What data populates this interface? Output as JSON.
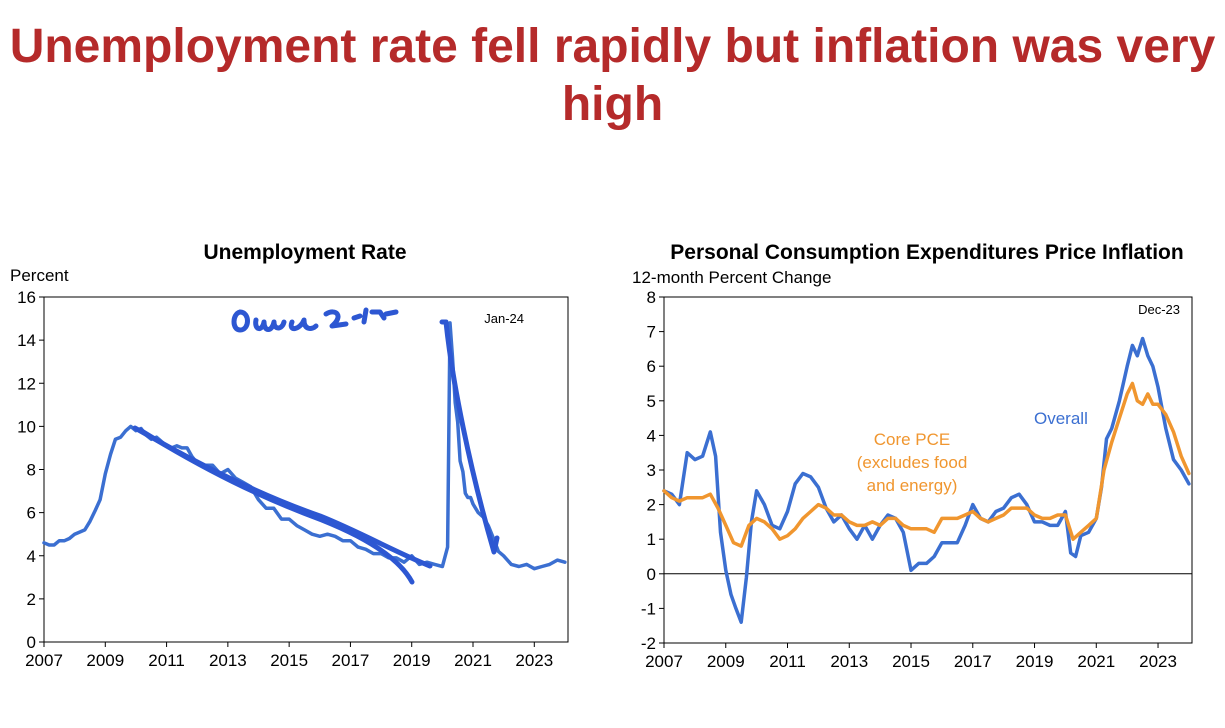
{
  "slide": {
    "title": "Unemployment rate fell rapidly but inflation was very high"
  },
  "colors": {
    "title": "#b52a2a",
    "overall": "#3b6fd1",
    "core": "#f0962f",
    "ink": "#2d57d2"
  },
  "chart_data": [
    {
      "type": "line",
      "title": "Unemployment Rate",
      "ylabel": "Percent",
      "xlabel": "",
      "date_label": "Jan-24",
      "xlim": [
        2007,
        2024.1
      ],
      "ylim": [
        0,
        16
      ],
      "x_ticks": [
        2007,
        2009,
        2011,
        2013,
        2015,
        2017,
        2019,
        2021,
        2023
      ],
      "y_ticks": [
        0,
        2,
        4,
        6,
        8,
        10,
        12,
        14,
        16
      ],
      "grid": false,
      "series": [
        {
          "name": "",
          "color": "#3b6fd1",
          "x": [
            2007.0,
            2007.17,
            2007.33,
            2007.5,
            2007.67,
            2007.83,
            2008.0,
            2008.17,
            2008.33,
            2008.5,
            2008.67,
            2008.83,
            2009.0,
            2009.17,
            2009.33,
            2009.5,
            2009.67,
            2009.83,
            2010.0,
            2010.17,
            2010.33,
            2010.5,
            2010.67,
            2010.83,
            2011.0,
            2011.17,
            2011.33,
            2011.5,
            2011.67,
            2011.83,
            2012.0,
            2012.25,
            2012.5,
            2012.75,
            2013.0,
            2013.25,
            2013.5,
            2013.75,
            2014.0,
            2014.25,
            2014.5,
            2014.75,
            2015.0,
            2015.25,
            2015.5,
            2015.75,
            2016.0,
            2016.25,
            2016.5,
            2016.75,
            2017.0,
            2017.25,
            2017.5,
            2017.75,
            2018.0,
            2018.25,
            2018.5,
            2018.75,
            2019.0,
            2019.25,
            2019.5,
            2019.75,
            2020.0,
            2020.17,
            2020.25,
            2020.33,
            2020.42,
            2020.5,
            2020.58,
            2020.67,
            2020.75,
            2020.83,
            2020.92,
            2021.0,
            2021.17,
            2021.33,
            2021.5,
            2021.67,
            2021.83,
            2022.0,
            2022.25,
            2022.5,
            2022.75,
            2023.0,
            2023.25,
            2023.5,
            2023.75,
            2024.0
          ],
          "y": [
            4.6,
            4.5,
            4.5,
            4.7,
            4.7,
            4.8,
            5.0,
            5.1,
            5.2,
            5.6,
            6.1,
            6.6,
            7.8,
            8.7,
            9.4,
            9.5,
            9.8,
            10.0,
            9.8,
            9.9,
            9.6,
            9.4,
            9.5,
            9.3,
            9.1,
            9.0,
            9.1,
            9.0,
            9.0,
            8.6,
            8.3,
            8.2,
            8.2,
            7.8,
            8.0,
            7.6,
            7.4,
            7.2,
            6.6,
            6.2,
            6.2,
            5.7,
            5.7,
            5.4,
            5.2,
            5.0,
            4.9,
            5.0,
            4.9,
            4.7,
            4.7,
            4.4,
            4.3,
            4.1,
            4.1,
            3.9,
            3.9,
            3.7,
            4.0,
            3.6,
            3.7,
            3.6,
            3.5,
            4.4,
            14.8,
            13.2,
            11.1,
            10.2,
            8.4,
            7.9,
            6.9,
            6.7,
            6.7,
            6.4,
            6.0,
            5.8,
            5.4,
            4.8,
            4.2,
            4.0,
            3.6,
            3.5,
            3.6,
            3.4,
            3.5,
            3.6,
            3.8,
            3.7
          ]
        }
      ]
    },
    {
      "type": "line",
      "title": "Personal Consumption Expenditures Price Inflation",
      "ylabel": "12-month Percent Change",
      "xlabel": "",
      "date_label": "Dec-23",
      "xlim": [
        2007,
        2024.1
      ],
      "ylim": [
        -2,
        8
      ],
      "x_ticks": [
        2007,
        2009,
        2011,
        2013,
        2015,
        2017,
        2019,
        2021,
        2023
      ],
      "y_ticks": [
        -2,
        -1,
        0,
        1,
        2,
        3,
        4,
        5,
        6,
        7,
        8
      ],
      "grid": false,
      "annotations": {
        "overall": "Overall",
        "core": [
          "Core PCE",
          "(excludes food",
          "and energy)"
        ]
      },
      "series": [
        {
          "name": "Overall",
          "color": "#3b6fd1",
          "x": [
            2007.0,
            2007.25,
            2007.5,
            2007.75,
            2008.0,
            2008.25,
            2008.5,
            2008.67,
            2008.83,
            2009.0,
            2009.17,
            2009.33,
            2009.5,
            2009.67,
            2009.83,
            2010.0,
            2010.25,
            2010.5,
            2010.75,
            2011.0,
            2011.25,
            2011.5,
            2011.75,
            2012.0,
            2012.25,
            2012.5,
            2012.75,
            2013.0,
            2013.25,
            2013.5,
            2013.75,
            2014.0,
            2014.25,
            2014.5,
            2014.75,
            2015.0,
            2015.25,
            2015.5,
            2015.75,
            2016.0,
            2016.25,
            2016.5,
            2016.75,
            2017.0,
            2017.25,
            2017.5,
            2017.75,
            2018.0,
            2018.25,
            2018.5,
            2018.75,
            2019.0,
            2019.25,
            2019.5,
            2019.75,
            2020.0,
            2020.17,
            2020.33,
            2020.5,
            2020.75,
            2021.0,
            2021.17,
            2021.33,
            2021.5,
            2021.75,
            2022.0,
            2022.17,
            2022.33,
            2022.5,
            2022.67,
            2022.83,
            2023.0,
            2023.25,
            2023.5,
            2023.75,
            2024.0
          ],
          "y": [
            2.4,
            2.3,
            2.0,
            3.5,
            3.3,
            3.4,
            4.1,
            3.4,
            1.2,
            0.1,
            -0.6,
            -1.0,
            -1.4,
            -0.1,
            1.5,
            2.4,
            2.0,
            1.4,
            1.3,
            1.8,
            2.6,
            2.9,
            2.8,
            2.5,
            1.9,
            1.5,
            1.7,
            1.3,
            1.0,
            1.4,
            1.0,
            1.4,
            1.7,
            1.6,
            1.2,
            0.1,
            0.3,
            0.3,
            0.5,
            0.9,
            0.9,
            0.9,
            1.4,
            2.0,
            1.6,
            1.5,
            1.8,
            1.9,
            2.2,
            2.3,
            2.0,
            1.5,
            1.5,
            1.4,
            1.4,
            1.8,
            0.6,
            0.5,
            1.1,
            1.2,
            1.6,
            2.5,
            3.9,
            4.2,
            5.0,
            6.0,
            6.6,
            6.3,
            6.8,
            6.3,
            6.0,
            5.4,
            4.2,
            3.3,
            3.0,
            2.6
          ]
        },
        {
          "name": "Core PCE",
          "color": "#f0962f",
          "x": [
            2007.0,
            2007.25,
            2007.5,
            2007.75,
            2008.0,
            2008.25,
            2008.5,
            2008.75,
            2009.0,
            2009.25,
            2009.5,
            2009.75,
            2010.0,
            2010.25,
            2010.5,
            2010.75,
            2011.0,
            2011.25,
            2011.5,
            2011.75,
            2012.0,
            2012.25,
            2012.5,
            2012.75,
            2013.0,
            2013.25,
            2013.5,
            2013.75,
            2014.0,
            2014.25,
            2014.5,
            2014.75,
            2015.0,
            2015.25,
            2015.5,
            2015.75,
            2016.0,
            2016.25,
            2016.5,
            2016.75,
            2017.0,
            2017.25,
            2017.5,
            2017.75,
            2018.0,
            2018.25,
            2018.5,
            2018.75,
            2019.0,
            2019.25,
            2019.5,
            2019.75,
            2020.0,
            2020.25,
            2020.5,
            2020.75,
            2021.0,
            2021.25,
            2021.5,
            2021.75,
            2022.0,
            2022.17,
            2022.33,
            2022.5,
            2022.67,
            2022.83,
            2023.0,
            2023.25,
            2023.5,
            2023.75,
            2024.0
          ],
          "y": [
            2.4,
            2.2,
            2.1,
            2.2,
            2.2,
            2.2,
            2.3,
            1.9,
            1.4,
            0.9,
            0.8,
            1.4,
            1.6,
            1.5,
            1.3,
            1.0,
            1.1,
            1.3,
            1.6,
            1.8,
            2.0,
            1.9,
            1.7,
            1.7,
            1.5,
            1.4,
            1.4,
            1.5,
            1.4,
            1.6,
            1.6,
            1.4,
            1.3,
            1.3,
            1.3,
            1.2,
            1.6,
            1.6,
            1.6,
            1.7,
            1.8,
            1.6,
            1.5,
            1.6,
            1.7,
            1.9,
            1.9,
            1.9,
            1.7,
            1.6,
            1.6,
            1.7,
            1.7,
            1.0,
            1.2,
            1.4,
            1.6,
            3.0,
            3.8,
            4.5,
            5.2,
            5.5,
            5.0,
            4.9,
            5.2,
            4.9,
            4.9,
            4.6,
            4.1,
            3.4,
            2.9
          ]
        }
      ]
    }
  ]
}
